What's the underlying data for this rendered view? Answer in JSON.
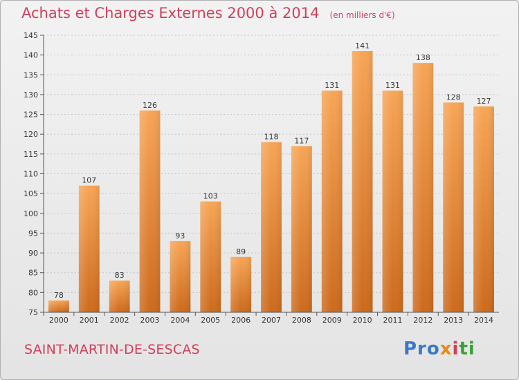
{
  "chart_data": {
    "type": "bar",
    "title": "Achats et Charges Externes 2000 à 2014",
    "subtitle": "(en milliers d'€)",
    "categories": [
      "2000",
      "2001",
      "2002",
      "2003",
      "2004",
      "2005",
      "2006",
      "2007",
      "2008",
      "2009",
      "2010",
      "2011",
      "2012",
      "2013",
      "2014"
    ],
    "values": [
      78,
      107,
      83,
      126,
      93,
      103,
      89,
      118,
      117,
      131,
      141,
      131,
      138,
      128,
      127
    ],
    "value_labels": [
      "78",
      "107",
      "83",
      "126",
      "93",
      "103",
      "89",
      "118",
      "117",
      "131",
      "141",
      "131",
      "138",
      "128",
      "127"
    ],
    "ylim": [
      75,
      145
    ],
    "yticks": [
      75,
      80,
      85,
      90,
      95,
      100,
      105,
      110,
      115,
      120,
      125,
      130,
      135,
      140,
      145
    ],
    "ytick_labels": [
      "75",
      "80",
      "85",
      "90",
      "95",
      "100",
      "105",
      "110",
      "115",
      "120",
      "125",
      "130",
      "135",
      "140",
      "145"
    ],
    "grid": true,
    "legend": "none",
    "bar_color": "#f0923a",
    "xlabel": "",
    "ylabel": ""
  },
  "footer": {
    "commune": "SAINT-MARTIN-DE-SESCAS",
    "brand": {
      "p1": "Pro",
      "p2": "x",
      "p3": "i",
      "p4": "ti"
    }
  },
  "colors": {
    "accent": "#d0405a",
    "bar": "#f0923a",
    "bar_dark": "#c8641a"
  }
}
